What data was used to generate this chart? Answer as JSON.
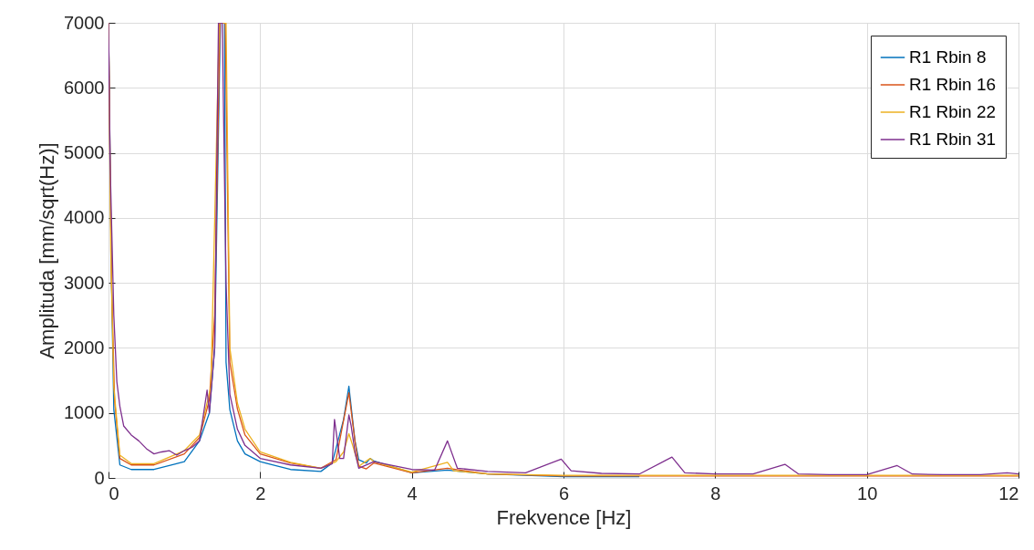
{
  "chart_data": {
    "type": "line",
    "xlabel": "Frekvence [Hz]",
    "ylabel": "Amplituda [mm/sqrt(Hz)]",
    "xlim": [
      0,
      12
    ],
    "ylim": [
      0,
      7000
    ],
    "xticks": [
      0,
      2,
      4,
      6,
      8,
      10,
      12
    ],
    "yticks": [
      0,
      1000,
      2000,
      3000,
      4000,
      5000,
      6000,
      7000
    ],
    "grid": true,
    "legend": "top right",
    "line_style": "solid",
    "marker": "none",
    "series": [
      {
        "name": "R1 Rbin 8",
        "color": "#0072bd",
        "x": [
          0,
          0.04,
          0.07,
          0.15,
          0.3,
          0.6,
          1.0,
          1.2,
          1.33,
          1.4,
          1.475,
          1.53,
          1.55,
          1.6,
          1.7,
          1.8,
          2.0,
          2.4,
          2.8,
          2.95,
          3.1,
          3.17,
          3.25,
          3.3,
          3.4,
          3.45,
          3.5,
          4.0,
          4.47,
          5.0,
          6.0,
          7.0
        ],
        "values": [
          7000,
          3000,
          1050,
          200,
          130,
          130,
          250,
          570,
          1000,
          2000,
          7000,
          7000,
          1780,
          1050,
          570,
          370,
          250,
          130,
          100,
          230,
          900,
          1410,
          570,
          280,
          230,
          300,
          260,
          80,
          120,
          60,
          20,
          20
        ]
      },
      {
        "name": "R1 Rbin 16",
        "color": "#d95319",
        "x": [
          0,
          0.04,
          0.08,
          0.15,
          0.3,
          0.6,
          1.0,
          1.2,
          1.33,
          1.4,
          1.47,
          1.54,
          1.6,
          1.7,
          1.8,
          2.0,
          2.4,
          2.8,
          3.0,
          3.17,
          3.25,
          3.3,
          3.4,
          3.5,
          4.0,
          4.47,
          5.0,
          6.0,
          7.0,
          8.0,
          9.0,
          10.0,
          11.0,
          12.0
        ],
        "values": [
          7000,
          3000,
          1200,
          300,
          200,
          200,
          370,
          620,
          1200,
          2500,
          7000,
          7000,
          1780,
          1060,
          660,
          370,
          230,
          150,
          280,
          1310,
          570,
          180,
          140,
          230,
          80,
          150,
          60,
          30,
          30,
          30,
          30,
          30,
          30,
          30
        ]
      },
      {
        "name": "R1 Rbin 22",
        "color": "#edb120",
        "x": [
          0,
          0.03,
          0.07,
          0.15,
          0.3,
          0.6,
          1.0,
          1.2,
          1.35,
          1.46,
          1.55,
          1.6,
          1.7,
          1.8,
          2.0,
          2.4,
          2.8,
          3.0,
          3.1,
          3.17,
          3.22,
          3.3,
          3.45,
          3.5,
          4.0,
          4.47,
          4.55,
          5.0,
          6.0,
          7.0,
          8.0,
          9.0,
          10.0,
          11.0,
          12.0
        ],
        "values": [
          7000,
          3500,
          1400,
          350,
          220,
          220,
          420,
          660,
          1400,
          7000,
          7000,
          2000,
          1150,
          750,
          400,
          240,
          150,
          250,
          400,
          680,
          500,
          180,
          300,
          250,
          90,
          240,
          110,
          60,
          40,
          40,
          40,
          40,
          40,
          40,
          40
        ]
      },
      {
        "name": "R1 Rbin 31",
        "color": "#7e2f8e",
        "x": [
          0,
          0.02,
          0.07,
          0.11,
          0.15,
          0.2,
          0.3,
          0.4,
          0.5,
          0.6,
          0.7,
          0.8,
          0.9,
          1.0,
          1.1,
          1.2,
          1.3,
          1.33,
          1.4,
          1.45,
          1.5,
          1.55,
          1.6,
          1.7,
          1.8,
          2.0,
          2.4,
          2.8,
          2.95,
          2.98,
          3.05,
          3.1,
          3.17,
          3.2,
          3.25,
          3.3,
          3.5,
          4.0,
          4.3,
          4.47,
          4.6,
          5.0,
          5.5,
          5.97,
          6.1,
          6.5,
          7.0,
          7.43,
          7.6,
          8.0,
          8.5,
          8.92,
          9.1,
          9.5,
          10.0,
          10.4,
          10.6,
          11.0,
          11.5,
          11.85,
          12.0
        ],
        "values": [
          7000,
          4900,
          2500,
          1480,
          1100,
          800,
          660,
          570,
          450,
          370,
          400,
          420,
          350,
          420,
          470,
          570,
          1350,
          1000,
          2000,
          7000,
          7000,
          3000,
          1290,
          750,
          500,
          300,
          200,
          150,
          220,
          900,
          300,
          300,
          970,
          800,
          400,
          150,
          250,
          130,
          120,
          570,
          150,
          100,
          80,
          290,
          110,
          70,
          60,
          320,
          80,
          60,
          60,
          210,
          60,
          50,
          50,
          190,
          60,
          50,
          50,
          80,
          60
        ]
      }
    ]
  }
}
